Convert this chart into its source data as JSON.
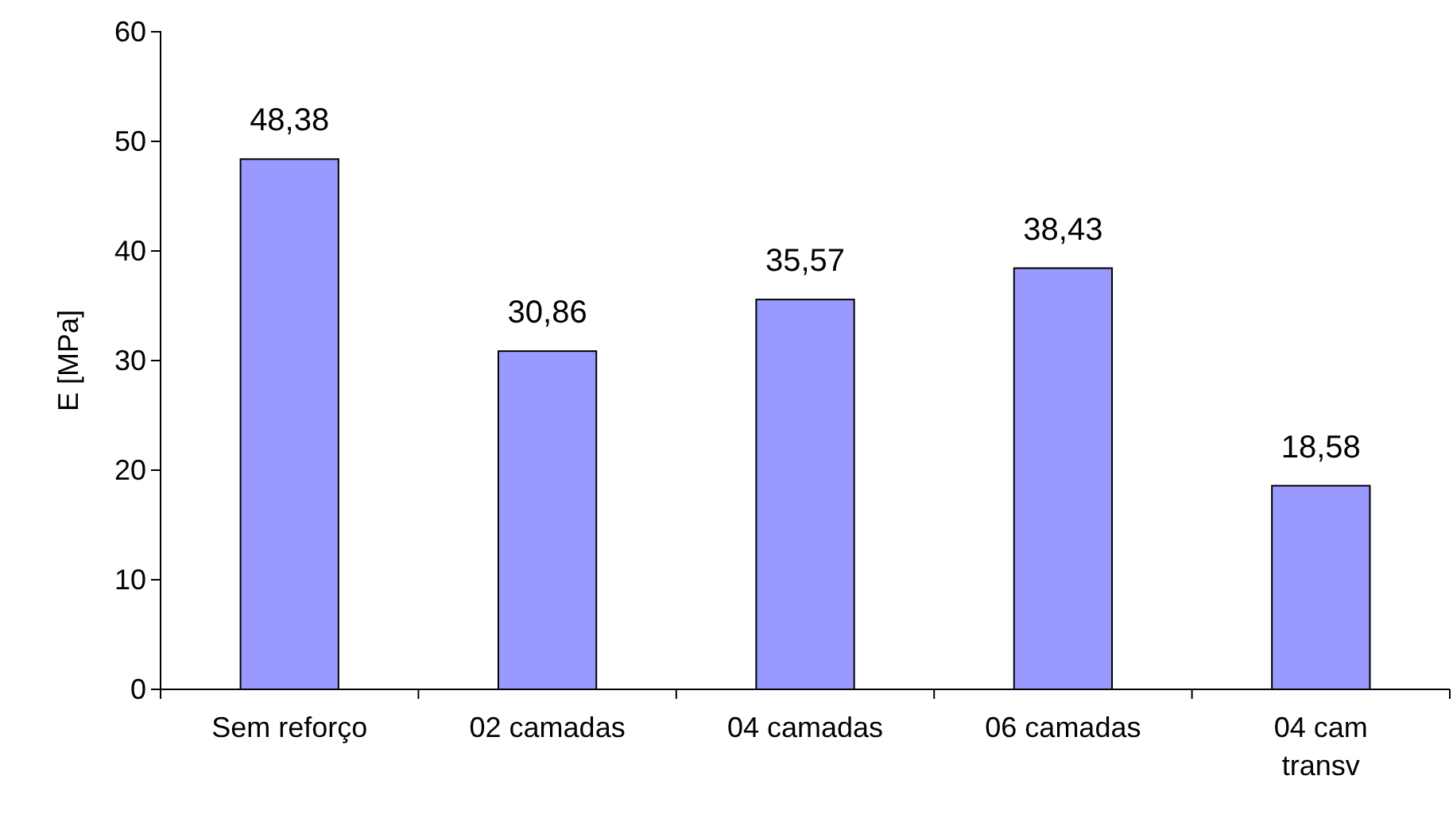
{
  "chart_data": {
    "type": "bar",
    "ylabel": "E [MPa]",
    "categories": [
      "Sem reforço",
      "02 camadas",
      "04 camadas",
      "06 camadas",
      "04 cam transv"
    ],
    "values": [
      48.38,
      30.86,
      35.57,
      38.43,
      18.58
    ],
    "value_labels": [
      "48,38",
      "30,86",
      "35,57",
      "38,43",
      "18,58"
    ],
    "color": "#9999ff",
    "ylim": [
      0,
      60
    ],
    "yticks": [
      0,
      10,
      20,
      30,
      40,
      50,
      60
    ]
  }
}
